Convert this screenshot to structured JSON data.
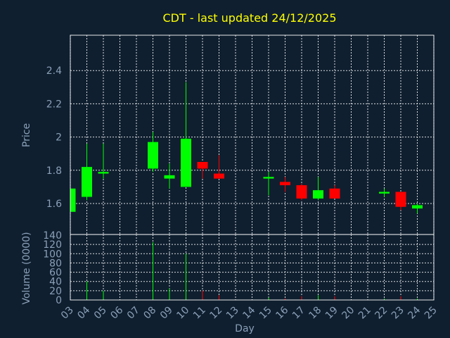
{
  "chart_data": {
    "type": "candlestick",
    "title": "CDT - last updated 24/12/2025",
    "xlabel": "Day",
    "price": {
      "ylabel": "Price",
      "ylim": [
        1.5,
        2.6
      ],
      "yticks": [
        "1.6",
        "1.8",
        "2",
        "2.2",
        "2.4"
      ]
    },
    "volume": {
      "ylabel": "Volume (0000)",
      "ylim": [
        0,
        140
      ],
      "yticks": [
        "0",
        "20",
        "40",
        "60",
        "80",
        "100",
        "120",
        "140"
      ]
    },
    "x_ticks": [
      "03",
      "04",
      "05",
      "06",
      "07",
      "08",
      "09",
      "10",
      "11",
      "12",
      "13",
      "14",
      "15",
      "16",
      "17",
      "18",
      "19",
      "20",
      "21",
      "22",
      "23",
      "24",
      "25"
    ],
    "grid": true,
    "colors": {
      "up": "#00ff00",
      "down": "#ff0000",
      "background": "#0f1f2f",
      "title": "#ffff00",
      "axis_text": "#8aa0b8"
    },
    "candles": [
      {
        "day": "03",
        "open": 1.55,
        "close": 1.69,
        "high": 1.69,
        "low": 1.55,
        "volume": 0
      },
      {
        "day": "04",
        "open": 1.64,
        "close": 1.82,
        "high": 1.96,
        "low": 1.62,
        "volume": 40
      },
      {
        "day": "05",
        "open": 1.78,
        "close": 1.79,
        "high": 1.96,
        "low": 1.75,
        "volume": 20
      },
      {
        "day": "08",
        "open": 1.81,
        "close": 1.97,
        "high": 2.03,
        "low": 1.79,
        "volume": 125
      },
      {
        "day": "09",
        "open": 1.75,
        "close": 1.77,
        "high": 1.84,
        "low": 1.69,
        "volume": 25
      },
      {
        "day": "10",
        "open": 1.7,
        "close": 1.99,
        "high": 2.33,
        "low": 1.7,
        "volume": 100
      },
      {
        "day": "11",
        "open": 1.85,
        "close": 1.81,
        "high": 1.85,
        "low": 1.75,
        "volume": 20
      },
      {
        "day": "12",
        "open": 1.78,
        "close": 1.75,
        "high": 1.89,
        "low": 1.75,
        "volume": 10
      },
      {
        "day": "15",
        "open": 1.75,
        "close": 1.76,
        "high": 1.79,
        "low": 1.65,
        "volume": 5
      },
      {
        "day": "16",
        "open": 1.73,
        "close": 1.71,
        "high": 1.76,
        "low": 1.67,
        "volume": 3
      },
      {
        "day": "17",
        "open": 1.71,
        "close": 1.63,
        "high": 1.72,
        "low": 1.62,
        "volume": 8
      },
      {
        "day": "18",
        "open": 1.63,
        "close": 1.68,
        "high": 1.76,
        "low": 1.62,
        "volume": 10
      },
      {
        "day": "19",
        "open": 1.69,
        "close": 1.63,
        "high": 1.71,
        "low": 1.63,
        "volume": 8
      },
      {
        "day": "22",
        "open": 1.66,
        "close": 1.67,
        "high": 1.69,
        "low": 1.64,
        "volume": 3
      },
      {
        "day": "23",
        "open": 1.67,
        "close": 1.58,
        "high": 1.67,
        "low": 1.56,
        "volume": 8
      },
      {
        "day": "24",
        "open": 1.57,
        "close": 1.59,
        "high": 1.6,
        "low": 1.54,
        "volume": 3
      }
    ]
  }
}
